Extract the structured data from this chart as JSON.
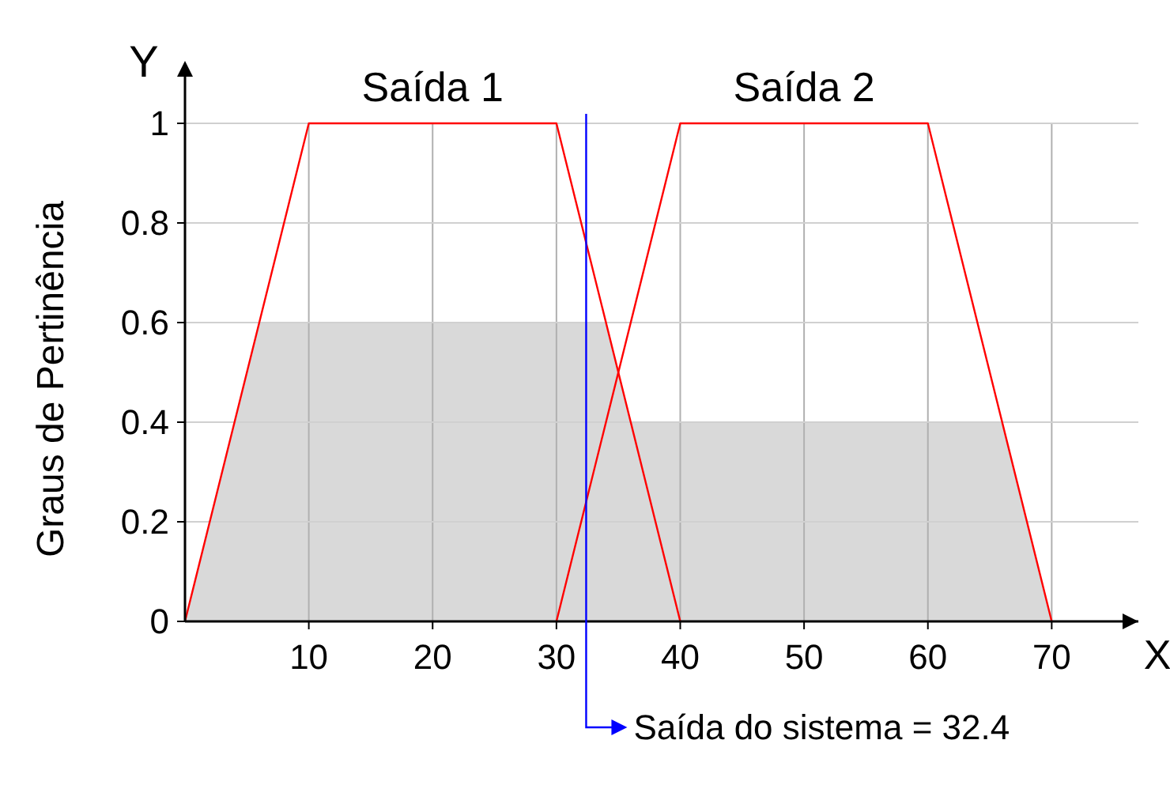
{
  "chart_data": {
    "type": "line",
    "xlabel": "X",
    "ylabel": "Graus de Pertinência",
    "annotations": [
      "Y"
    ],
    "xlim": [
      0,
      77
    ],
    "ylim": [
      0,
      1.1
    ],
    "xticks": [
      10,
      20,
      30,
      40,
      50,
      60,
      70
    ],
    "yticks": [
      0,
      0.2,
      0.4,
      0.6,
      0.8,
      1
    ],
    "grid": true,
    "marker": "none",
    "series": [
      {
        "type": "area",
        "color": "#d9d9d9",
        "x": [
          0,
          6,
          34,
          36,
          66,
          70
        ],
        "values": [
          0,
          0.6,
          0.6,
          0.4,
          0.4,
          0
        ]
      },
      {
        "name": "Saída 1",
        "color": "#ff0000",
        "x": [
          0,
          10,
          30,
          40
        ],
        "values": [
          0,
          1,
          1,
          0
        ]
      },
      {
        "name": "Saída 2",
        "color": "#ff0000",
        "x": [
          30,
          40,
          60,
          70
        ],
        "values": [
          0,
          1,
          1,
          0
        ]
      }
    ],
    "ref_lines": [
      {
        "axis": "x",
        "value": 32.4,
        "label": "Saída do sistema = 32.4",
        "color": "#0000ff"
      }
    ]
  }
}
